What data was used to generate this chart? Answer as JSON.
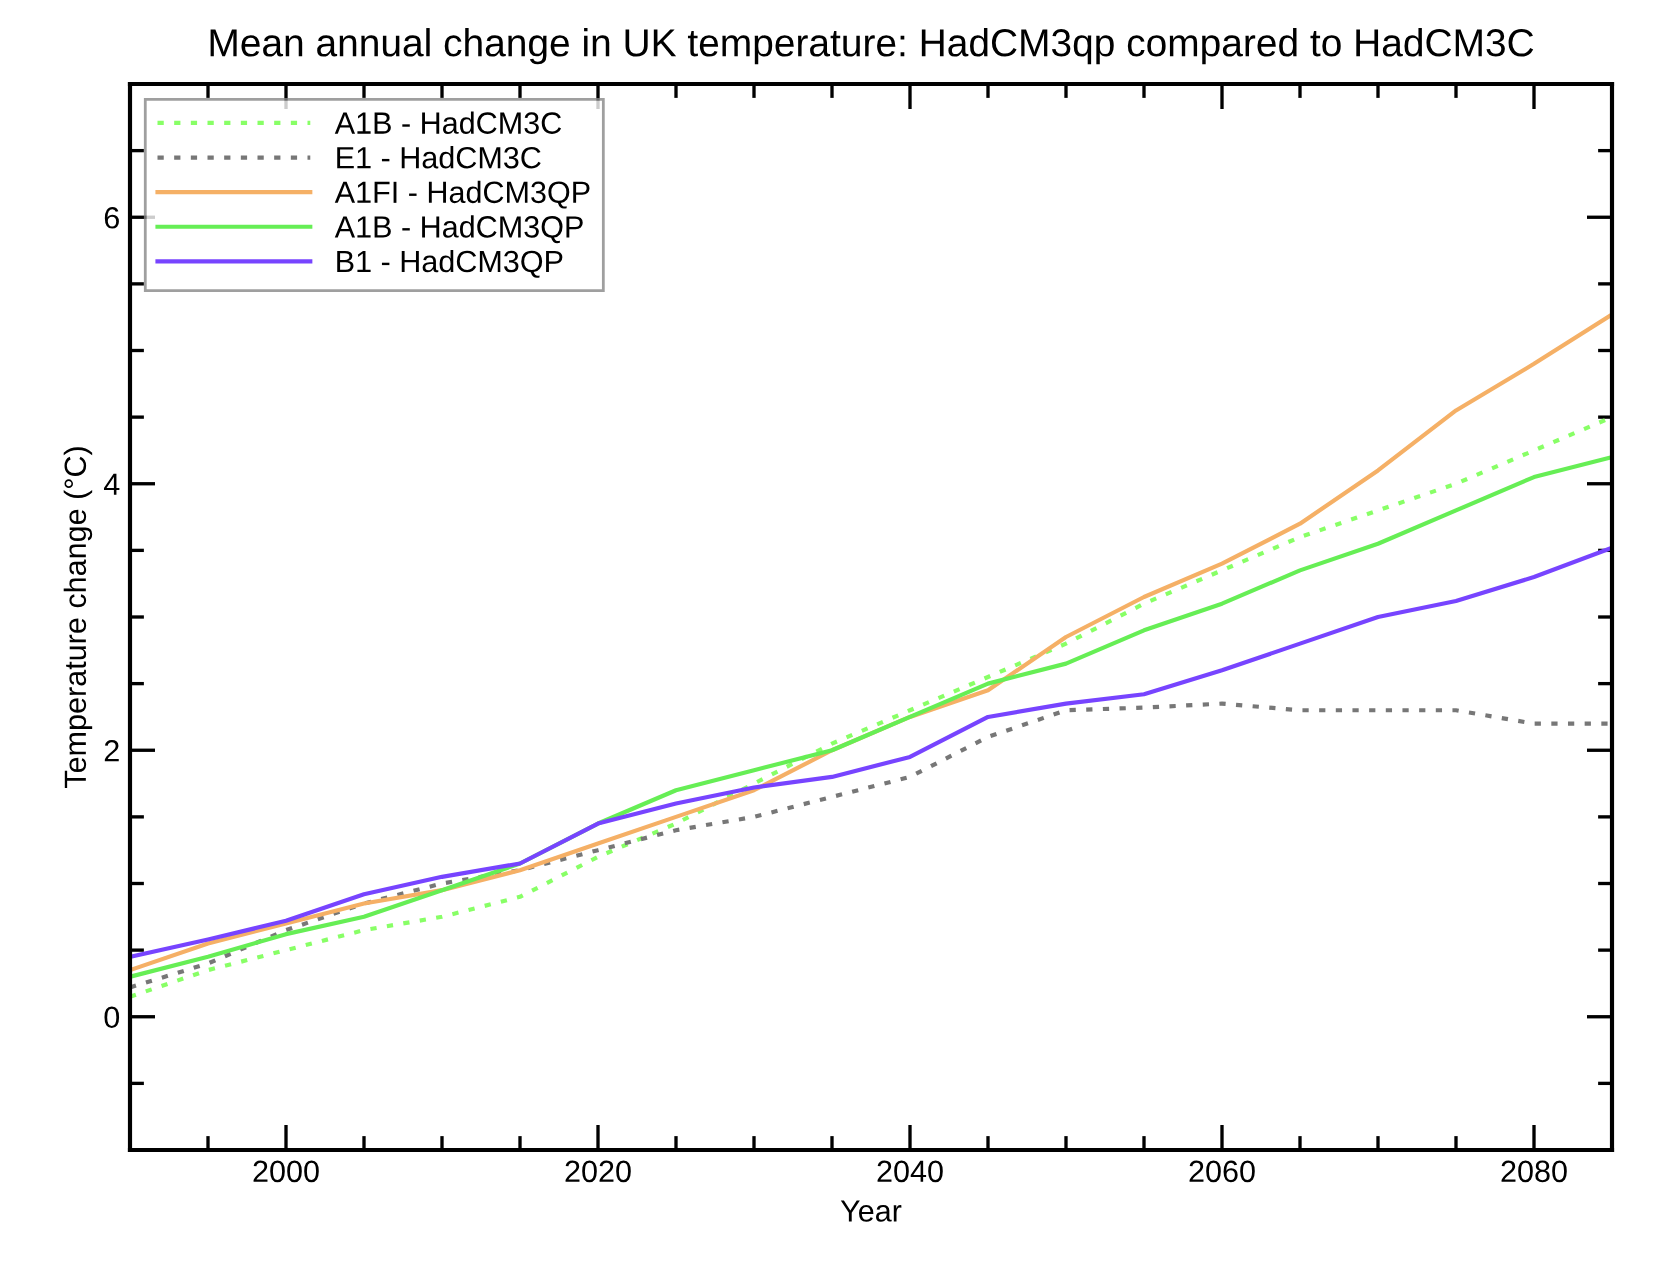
{
  "chart_data": {
    "type": "line",
    "title": "Mean annual change in UK temperature: HadCM3qp compared to HadCM3C",
    "xlabel": "Year",
    "ylabel": "Temperature change (°C)",
    "x": [
      1990,
      1995,
      2000,
      2005,
      2010,
      2015,
      2020,
      2025,
      2030,
      2035,
      2040,
      2045,
      2050,
      2055,
      2060,
      2065,
      2070,
      2075,
      2080,
      2085
    ],
    "series": [
      {
        "name": "A1B - HadCM3C",
        "color": "#88ff66",
        "line_style": "dotted",
        "values": [
          0.15,
          0.35,
          0.5,
          0.65,
          0.75,
          0.9,
          1.2,
          1.45,
          1.75,
          2.05,
          2.3,
          2.55,
          2.8,
          3.1,
          3.35,
          3.6,
          3.8,
          4.0,
          4.25,
          4.5
        ]
      },
      {
        "name": "E1 - HadCM3C",
        "color": "#777777",
        "line_style": "dotted",
        "values": [
          0.22,
          0.4,
          0.65,
          0.85,
          1.0,
          1.1,
          1.25,
          1.4,
          1.5,
          1.65,
          1.8,
          2.1,
          2.3,
          2.32,
          2.35,
          2.3,
          2.3,
          2.3,
          2.2,
          2.2
        ]
      },
      {
        "name": "A1FI - HadCM3QP",
        "color": "#f5b066",
        "line_style": "solid",
        "values": [
          0.35,
          0.55,
          0.7,
          0.85,
          0.95,
          1.1,
          1.3,
          1.5,
          1.7,
          2.0,
          2.25,
          2.45,
          2.85,
          3.15,
          3.4,
          3.7,
          4.1,
          4.55,
          4.9,
          5.27
        ]
      },
      {
        "name": "A1B - HadCM3QP",
        "color": "#66ee55",
        "line_style": "solid",
        "values": [
          0.3,
          0.45,
          0.62,
          0.75,
          0.95,
          1.15,
          1.45,
          1.7,
          1.85,
          2.0,
          2.25,
          2.5,
          2.65,
          2.9,
          3.1,
          3.35,
          3.55,
          3.8,
          4.05,
          4.2
        ]
      },
      {
        "name": "B1 - HadCM3QP",
        "color": "#7744ff",
        "line_style": "solid",
        "values": [
          0.45,
          0.58,
          0.72,
          0.92,
          1.05,
          1.15,
          1.45,
          1.6,
          1.72,
          1.8,
          1.95,
          2.25,
          2.35,
          2.42,
          2.6,
          2.8,
          3.0,
          3.12,
          3.3,
          3.52
        ]
      }
    ],
    "xlim": [
      1990,
      2085
    ],
    "ylim": [
      -1,
      7
    ],
    "xticks": [
      {
        "value": 1995,
        "label": null
      },
      2000,
      {
        "value": 2005,
        "label": null
      },
      {
        "value": 2010,
        "label": null
      },
      {
        "value": 2015,
        "label": null
      },
      2020,
      {
        "value": 2025,
        "label": null
      },
      {
        "value": 2030,
        "label": null
      },
      {
        "value": 2035,
        "label": null
      },
      2040,
      {
        "value": 2045,
        "label": null
      },
      {
        "value": 2050,
        "label": null
      },
      {
        "value": 2055,
        "label": null
      },
      2060,
      {
        "value": 2065,
        "label": null
      },
      {
        "value": 2070,
        "label": null
      },
      {
        "value": 2075,
        "label": null
      },
      2080
    ],
    "yticks": [
      {
        "value": -0.5,
        "label": null
      },
      0,
      {
        "value": 0.5,
        "label": null
      },
      {
        "value": 1,
        "label": null
      },
      {
        "value": 1.5,
        "label": null
      },
      2,
      {
        "value": 2.5,
        "label": null
      },
      {
        "value": 3,
        "label": null
      },
      {
        "value": 3.5,
        "label": null
      },
      4,
      {
        "value": 4.5,
        "label": null
      },
      {
        "value": 5,
        "label": null
      },
      {
        "value": 5.5,
        "label": null
      },
      6,
      {
        "value": 6.5,
        "label": null
      }
    ],
    "grid": false,
    "legend": "top left",
    "marker": "none"
  }
}
